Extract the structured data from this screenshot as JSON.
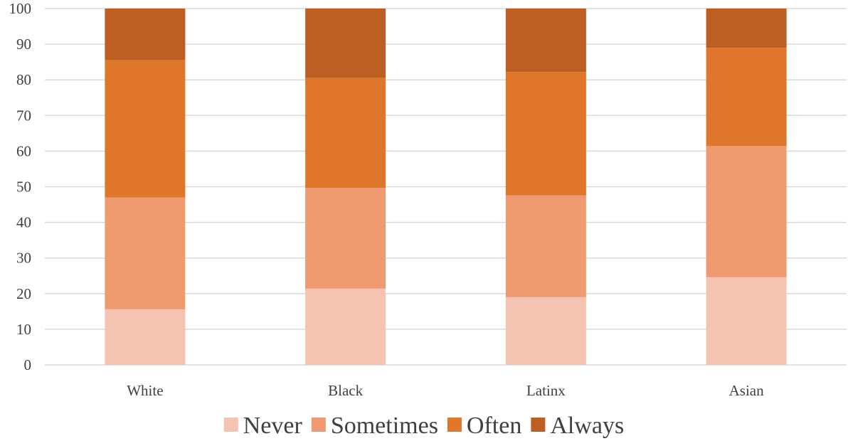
{
  "chart_data": {
    "type": "bar",
    "stacked": true,
    "title": "",
    "xlabel": "",
    "ylabel": "",
    "categories": [
      "White",
      "Black",
      "Latinx",
      "Asian"
    ],
    "series": [
      {
        "name": "Never",
        "values": [
          15.6,
          21.4,
          19.0,
          24.6
        ],
        "color": "#f4c3b2"
      },
      {
        "name": "Sometimes",
        "values": [
          31.4,
          28.3,
          28.6,
          36.8
        ],
        "color": "#ef9a70"
      },
      {
        "name": "Often",
        "values": [
          38.5,
          30.8,
          34.6,
          27.6
        ],
        "color": "#df762c"
      },
      {
        "name": "Always",
        "values": [
          14.5,
          19.5,
          17.8,
          11.0
        ],
        "color": "#bd5f22"
      }
    ],
    "ylim": [
      0,
      100
    ],
    "yticks": [
      "0",
      "10",
      "20",
      "30",
      "40",
      "50",
      "60",
      "70",
      "80",
      "90",
      "100"
    ],
    "grid": true,
    "legend_position": "bottom"
  }
}
